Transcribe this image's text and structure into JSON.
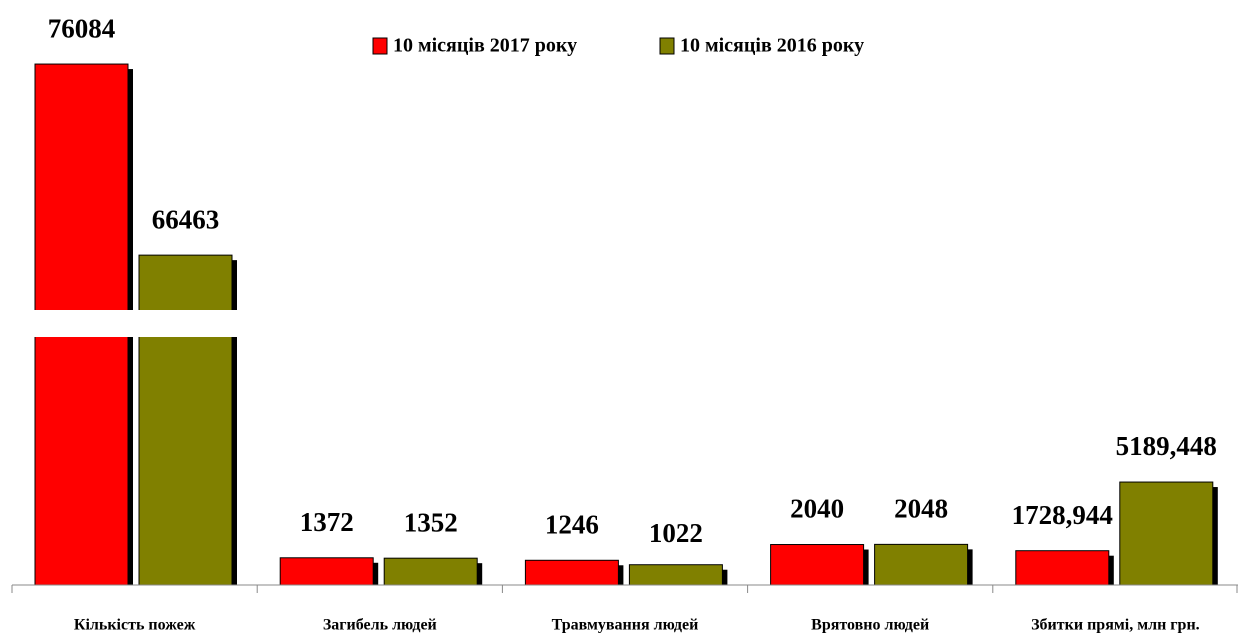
{
  "chart_data": {
    "type": "bar",
    "categories": [
      "Кількість пожеж",
      "Загибель людей",
      "Травмування людей",
      "Врятовно людей",
      "Збитки прямі, млн грн."
    ],
    "series": [
      {
        "name": "10 місяців 2017 року",
        "color": "#ff0000",
        "values": [
          76084,
          1372,
          1246,
          2040,
          1728.944
        ],
        "value_labels": [
          "76084",
          "1372",
          "1246",
          "2040",
          "1728,944"
        ]
      },
      {
        "name": "10 місяців 2016 року",
        "color": "#808000",
        "values": [
          66463,
          1352,
          1022,
          2048,
          5189.448
        ],
        "value_labels": [
          "66463",
          "1352",
          "1022",
          "2048",
          "5189,448"
        ]
      }
    ],
    "ylim": [
      0,
      78000
    ],
    "axis_break": [
      12500,
      63700
    ],
    "legend": "top"
  }
}
